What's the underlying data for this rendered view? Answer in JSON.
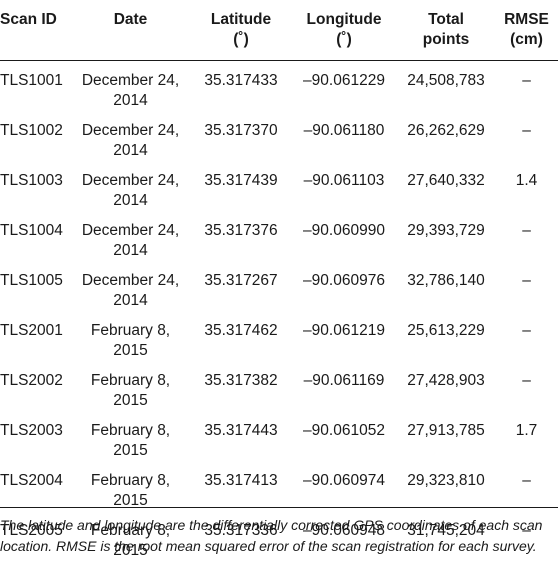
{
  "table": {
    "headers": [
      {
        "line1": "Scan ID",
        "line2": ""
      },
      {
        "line1": "Date",
        "line2": ""
      },
      {
        "line1": "Latitude",
        "line2": "(˚)"
      },
      {
        "line1": "Longitude",
        "line2": "(˚)"
      },
      {
        "line1": "Total",
        "line2": "points"
      },
      {
        "line1": "RMSE",
        "line2": "(cm)"
      }
    ],
    "rows": [
      {
        "scan_id": "TLS1001",
        "date_line1": "December 24,",
        "date_line2": "2014",
        "latitude": "35.317433",
        "longitude": "–90.061229",
        "total_points": "24,508,783",
        "rmse": "–"
      },
      {
        "scan_id": "TLS1002",
        "date_line1": "December 24,",
        "date_line2": "2014",
        "latitude": "35.317370",
        "longitude": "–90.061180",
        "total_points": "26,262,629",
        "rmse": "–"
      },
      {
        "scan_id": "TLS1003",
        "date_line1": "December 24,",
        "date_line2": "2014",
        "latitude": "35.317439",
        "longitude": "–90.061103",
        "total_points": "27,640,332",
        "rmse": "1.4"
      },
      {
        "scan_id": "TLS1004",
        "date_line1": "December 24,",
        "date_line2": "2014",
        "latitude": "35.317376",
        "longitude": "–90.060990",
        "total_points": "29,393,729",
        "rmse": "–"
      },
      {
        "scan_id": "TLS1005",
        "date_line1": "December 24,",
        "date_line2": "2014",
        "latitude": "35.317267",
        "longitude": "–90.060976",
        "total_points": "32,786,140",
        "rmse": "–"
      },
      {
        "scan_id": "TLS2001",
        "date_line1": "February 8,",
        "date_line2": "2015",
        "latitude": "35.317462",
        "longitude": "–90.061219",
        "total_points": "25,613,229",
        "rmse": "–"
      },
      {
        "scan_id": "TLS2002",
        "date_line1": "February 8,",
        "date_line2": "2015",
        "latitude": "35.317382",
        "longitude": "–90.061169",
        "total_points": "27,428,903",
        "rmse": "–"
      },
      {
        "scan_id": "TLS2003",
        "date_line1": "February 8,",
        "date_line2": "2015",
        "latitude": "35.317443",
        "longitude": "–90.061052",
        "total_points": "27,913,785",
        "rmse": "1.7"
      },
      {
        "scan_id": "TLS2004",
        "date_line1": "February 8,",
        "date_line2": "2015",
        "latitude": "35.317413",
        "longitude": "–90.060974",
        "total_points": "29,323,810",
        "rmse": "–"
      },
      {
        "scan_id": "TLS2005",
        "date_line1": "February 8,",
        "date_line2": "2015",
        "latitude": "35.317336",
        "longitude": "–90.060948",
        "total_points": "31,745,204",
        "rmse": "–"
      }
    ]
  },
  "footnote": "The latitude and longitude are the differentially corrected GPS coordinates of each scan location. RMSE is the root mean squared error of the scan registration for each survey."
}
